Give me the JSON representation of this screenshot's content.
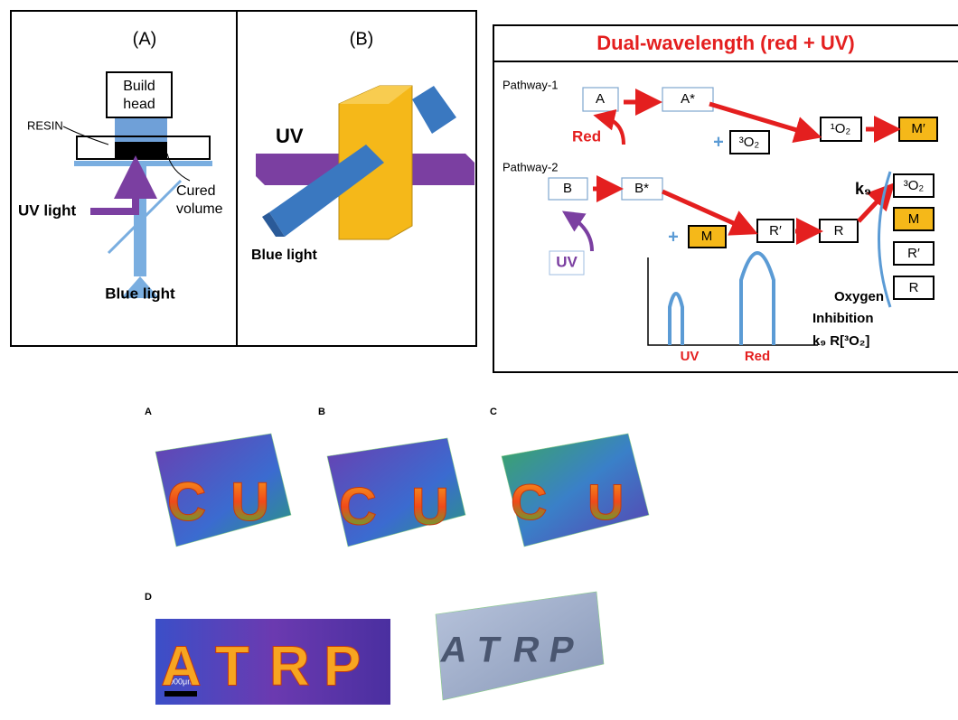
{
  "panel_a": {
    "label": "(A)",
    "build_head": [
      "Build",
      "head"
    ],
    "resin": "RESIN",
    "cured": [
      "Cured",
      "volume"
    ],
    "uv": "UV light",
    "blue": "Blue light"
  },
  "panel_b": {
    "label": "(B)",
    "uv": "UV",
    "blue": "Blue light"
  },
  "panel_c": {
    "title": "Dual-wavelength  (red + UV)",
    "pathway1": "Pathway-1",
    "pathway2": "Pathway-2",
    "nodes": {
      "A": "A",
      "A_star": "A*",
      "singlet_o2": "¹O₂",
      "M_prime": "M′",
      "triplet_o2": "³O₂",
      "B": "B",
      "B_star": "B*",
      "M": "M",
      "R_prime": "R′",
      "R": "R"
    },
    "red": "Red",
    "uv": "UV",
    "k9": "k₉",
    "column": [
      "³O₂",
      "M",
      "R′",
      "R"
    ],
    "spectrum": {
      "uv": "UV",
      "red": "Red"
    },
    "inhibition": [
      "Oxygen",
      "Inhibition",
      "k₉ R[³O₂]"
    ]
  },
  "images": {
    "labels": [
      "A",
      "B",
      "C",
      "D"
    ],
    "letters": [
      [
        "C",
        "U"
      ],
      [
        "C",
        "U"
      ],
      [
        "C",
        "U"
      ],
      [
        "A",
        "T",
        "R",
        "P"
      ],
      [
        "A",
        "T",
        "R",
        "P"
      ]
    ],
    "scale": "5000μm"
  }
}
